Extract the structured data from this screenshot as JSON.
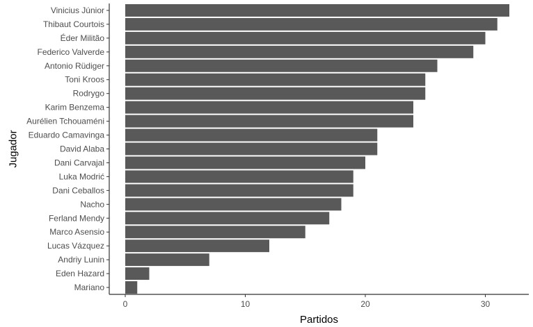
{
  "chart_data": {
    "type": "bar",
    "orientation": "horizontal",
    "title": "",
    "xlabel": "Partidos",
    "ylabel": "Jugador",
    "xlim": [
      0,
      33
    ],
    "xticks": [
      0,
      10,
      20,
      30
    ],
    "grid": false,
    "bar_color": "#595959",
    "categories": [
      "Vinicius Júnior",
      "Thibaut Courtois",
      "Éder Militão",
      "Federico Valverde",
      "Antonio Rüdiger",
      "Toni Kroos",
      "Rodrygo",
      "Karim Benzema",
      "Aurélien Tchouaméni",
      "Eduardo Camavinga",
      "David Alaba",
      "Dani Carvajal",
      "Luka Modrić",
      "Dani Ceballos",
      "Nacho",
      "Ferland Mendy",
      "Marco Asensio",
      "Lucas Vázquez",
      "Andriy Lunin",
      "Eden Hazard",
      "Mariano"
    ],
    "values": [
      32,
      31,
      30,
      29,
      26,
      25,
      25,
      24,
      24,
      21,
      21,
      20,
      19,
      19,
      18,
      17,
      15,
      12,
      7,
      2,
      1
    ]
  }
}
